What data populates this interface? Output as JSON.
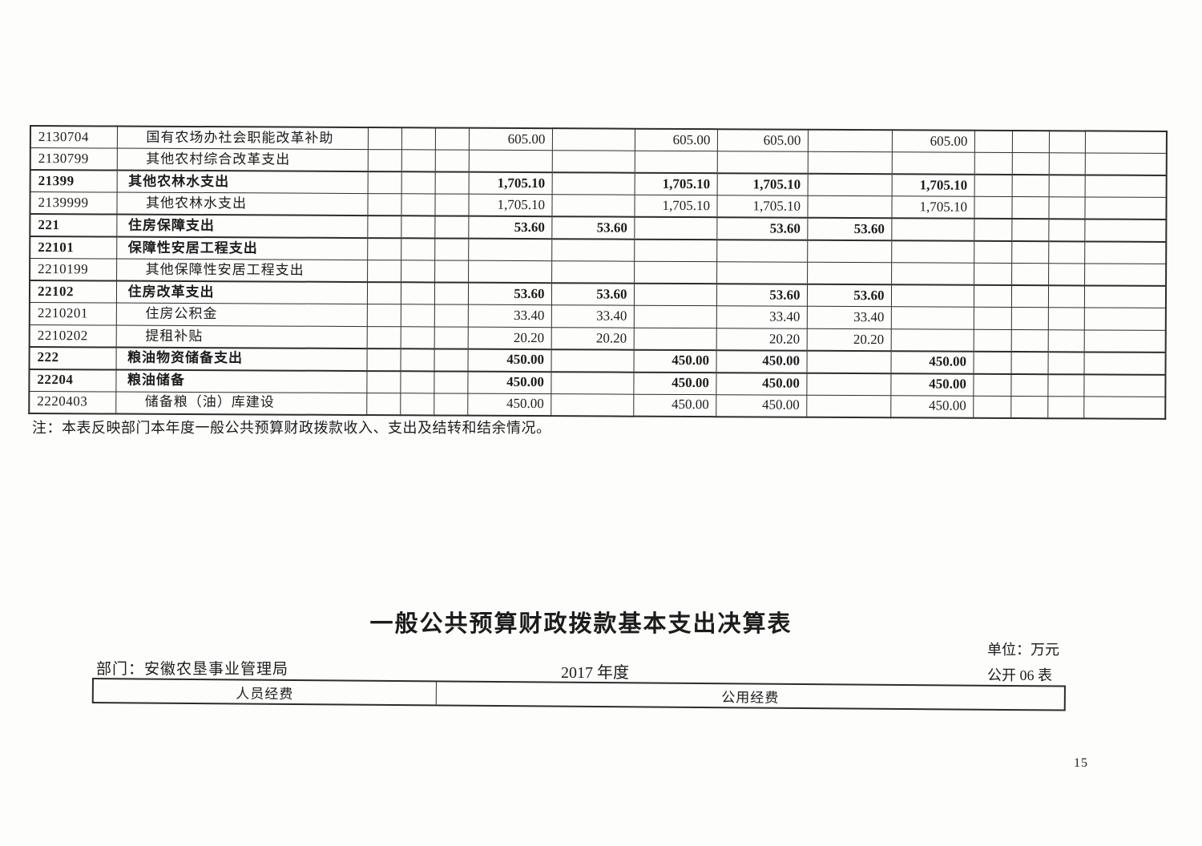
{
  "colors": {
    "ink": "#1c1c1c",
    "line": "#2e2c2a",
    "paper": "#fdfdfc"
  },
  "budget_table": {
    "rows": [
      {
        "code": "2130704",
        "name": "国有农场办社会职能改革补助",
        "style": "detail",
        "values": [
          "605.00",
          "",
          "605.00",
          "605.00",
          "",
          "605.00"
        ]
      },
      {
        "code": "2130799",
        "name": "其他农村综合改革支出",
        "style": "detail",
        "values": [
          "",
          "",
          "",
          "",
          "",
          ""
        ]
      },
      {
        "code": "21399",
        "name": "其他农林水支出",
        "style": "summary",
        "values": [
          "1,705.10",
          "",
          "1,705.10",
          "1,705.10",
          "",
          "1,705.10"
        ]
      },
      {
        "code": "2139999",
        "name": "其他农林水支出",
        "style": "detail",
        "values": [
          "1,705.10",
          "",
          "1,705.10",
          "1,705.10",
          "",
          "1,705.10"
        ]
      },
      {
        "code": "221",
        "name": "住房保障支出",
        "style": "summary",
        "values": [
          "53.60",
          "53.60",
          "",
          "53.60",
          "53.60",
          ""
        ]
      },
      {
        "code": "22101",
        "name": "保障性安居工程支出",
        "style": "summary",
        "values": [
          "",
          "",
          "",
          "",
          "",
          ""
        ]
      },
      {
        "code": "2210199",
        "name": "其他保障性安居工程支出",
        "style": "detail",
        "values": [
          "",
          "",
          "",
          "",
          "",
          ""
        ]
      },
      {
        "code": "22102",
        "name": "住房改革支出",
        "style": "summary",
        "values": [
          "53.60",
          "53.60",
          "",
          "53.60",
          "53.60",
          ""
        ]
      },
      {
        "code": "2210201",
        "name": "住房公积金",
        "style": "detail",
        "values": [
          "33.40",
          "33.40",
          "",
          "33.40",
          "33.40",
          ""
        ]
      },
      {
        "code": "2210202",
        "name": "提租补贴",
        "style": "detail",
        "values": [
          "20.20",
          "20.20",
          "",
          "20.20",
          "20.20",
          ""
        ]
      },
      {
        "code": "222",
        "name": "粮油物资储备支出",
        "style": "summary",
        "values": [
          "450.00",
          "",
          "450.00",
          "450.00",
          "",
          "450.00"
        ]
      },
      {
        "code": "22204",
        "name": "粮油储备",
        "style": "summary",
        "values": [
          "450.00",
          "",
          "450.00",
          "450.00",
          "",
          "450.00"
        ]
      },
      {
        "code": "2220403",
        "name": "储备粮（油）库建设",
        "style": "detail",
        "values": [
          "450.00",
          "",
          "450.00",
          "450.00",
          "",
          "450.00"
        ]
      }
    ]
  },
  "note": "注：本表反映部门本年度一般公共预算财政拨款收入、支出及结转和结余情况。",
  "bottom_section": {
    "title": "一般公共预算财政拨款基本支出决算表",
    "department": "部门：安徽农垦事业管理局",
    "year": "2017 年度",
    "unit": "单位：万元",
    "table_no": "公开 06 表",
    "columns": [
      "人员经费",
      "公用经费"
    ]
  },
  "page_number": "15"
}
